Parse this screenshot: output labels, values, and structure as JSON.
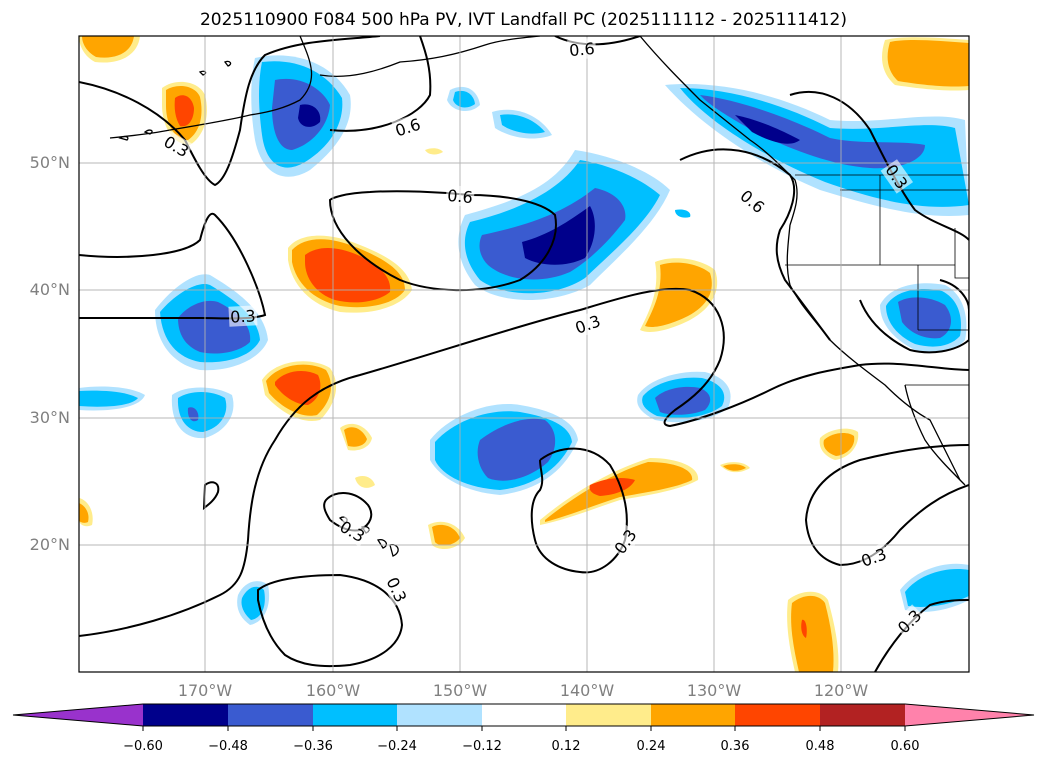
{
  "title": "2025110900 F084 500 hPa PV, IVT Landfall PC (2025111112 - 2025111412)",
  "lat_labels": [
    "50°N",
    "40°N",
    "30°N",
    "20°N"
  ],
  "lon_labels": [
    "170°W",
    "160°W",
    "150°W",
    "140°W",
    "130°W",
    "120°W"
  ],
  "contour_labels": [
    "0.6",
    "0.6",
    "0.6",
    "0.6",
    "0.3",
    "0.3",
    "0.3",
    "0.3",
    "0.3",
    "0.3",
    "0.3",
    "0.3",
    "0.3"
  ],
  "colorbar": {
    "ticks": [
      "−0.60",
      "−0.48",
      "−0.36",
      "−0.24",
      "−0.12",
      "0.12",
      "0.24",
      "0.36",
      "0.48",
      "0.60"
    ],
    "colors": {
      "under": "#9932cc",
      "n060": "#00008b",
      "n048": "#3a5bd0",
      "n036": "#00bfff",
      "n024": "#b0e2ff",
      "zero": "#ffffff",
      "p012": "#ffec8b",
      "p024": "#ffa500",
      "p036": "#ff4500",
      "p048": "#b22222",
      "over": "#ff82ab"
    }
  }
}
